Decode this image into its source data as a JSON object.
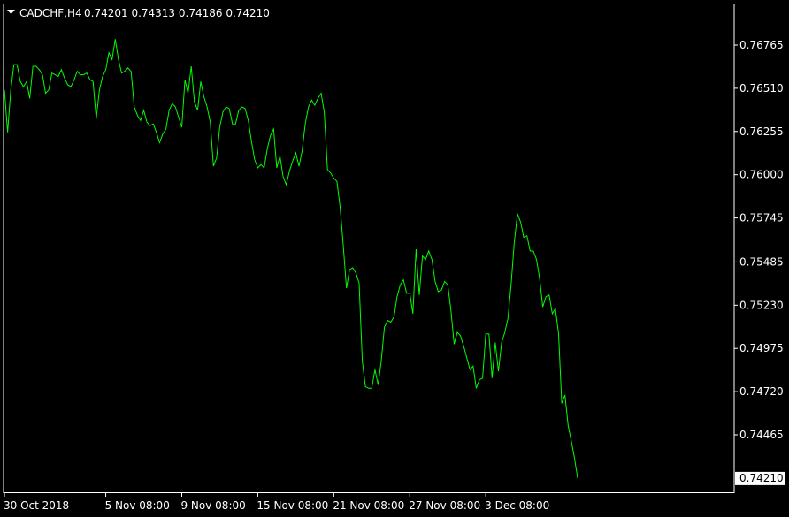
{
  "header": {
    "symbol": "CADCHF,H4",
    "ohlc": "0.74201 0.74313 0.74186 0.74210"
  },
  "colors": {
    "background": "#000000",
    "frame": "#ffffff",
    "line": "#00ff00",
    "text": "#ffffff",
    "current_price_box": "#ffffff",
    "current_price_text": "#000000"
  },
  "chart_data": {
    "type": "line",
    "title": "CADCHF,H4",
    "grid": false,
    "y_tick_labels": [
      "0.76765",
      "0.76510",
      "0.76255",
      "0.76000",
      "0.75745",
      "0.75485",
      "0.75230",
      "0.74975",
      "0.74720",
      "0.74465"
    ],
    "y_ticks": [
      0.76765,
      0.7651,
      0.76255,
      0.76,
      0.75745,
      0.75485,
      0.7523,
      0.74975,
      0.7472,
      0.74465
    ],
    "x_tick_labels": [
      "30 Oct 2018",
      "5 Nov 08:00",
      "9 Nov 08:00",
      "15 Nov 08:00",
      "21 Nov 08:00",
      "27 Nov 08:00",
      "3 Dec 08:00"
    ],
    "x_tick_bar_index": [
      0,
      32,
      56,
      80,
      104,
      128,
      152
    ],
    "current_price": "0.74210",
    "ylim": [
      0.741,
      0.77
    ],
    "series": [
      {
        "values": [
          0.765,
          0.7625,
          0.765,
          0.7665,
          0.7665,
          0.7655,
          0.7652,
          0.7655,
          0.7645,
          0.7664,
          0.7664,
          0.7662,
          0.7659,
          0.7648,
          0.765,
          0.766,
          0.7659,
          0.7658,
          0.7662,
          0.7657,
          0.7653,
          0.7652,
          0.7656,
          0.7661,
          0.7659,
          0.7659,
          0.766,
          0.7656,
          0.7655,
          0.7633,
          0.765,
          0.7658,
          0.7662,
          0.7672,
          0.7668,
          0.768,
          0.7668,
          0.766,
          0.7661,
          0.7663,
          0.7661,
          0.764,
          0.7635,
          0.7632,
          0.7638,
          0.7631,
          0.7629,
          0.763,
          0.7625,
          0.7619,
          0.7624,
          0.7627,
          0.7638,
          0.7642,
          0.764,
          0.7634,
          0.7628,
          0.7656,
          0.7648,
          0.7664,
          0.7643,
          0.7638,
          0.7655,
          0.7646,
          0.764,
          0.7631,
          0.7605,
          0.761,
          0.7628,
          0.7637,
          0.764,
          0.7639,
          0.763,
          0.763,
          0.7638,
          0.764,
          0.7639,
          0.7632,
          0.762,
          0.7609,
          0.7604,
          0.7606,
          0.7604,
          0.7615,
          0.7623,
          0.7627,
          0.7604,
          0.7611,
          0.7599,
          0.7594,
          0.7602,
          0.7608,
          0.7613,
          0.7605,
          0.7614,
          0.763,
          0.764,
          0.7644,
          0.7641,
          0.7645,
          0.7648,
          0.7637,
          0.7603,
          0.7601,
          0.7598,
          0.7596,
          0.7581,
          0.7558,
          0.7533,
          0.7544,
          0.7545,
          0.7542,
          0.7536,
          0.749,
          0.7475,
          0.7474,
          0.7474,
          0.7485,
          0.7476,
          0.749,
          0.751,
          0.7514,
          0.7513,
          0.7516,
          0.7528,
          0.7535,
          0.7538,
          0.753,
          0.753,
          0.7518,
          0.7556,
          0.7529,
          0.7552,
          0.755,
          0.7555,
          0.755,
          0.7537,
          0.7531,
          0.7532,
          0.7537,
          0.7535,
          0.752,
          0.75,
          0.7507,
          0.7505,
          0.7499,
          0.7492,
          0.7485,
          0.7487,
          0.7474,
          0.7479,
          0.748,
          0.7506,
          0.7506,
          0.748,
          0.7501,
          0.7484,
          0.7501,
          0.7507,
          0.7515,
          0.7535,
          0.756,
          0.7577,
          0.7572,
          0.7563,
          0.7564,
          0.7555,
          0.7555,
          0.755,
          0.7539,
          0.7522,
          0.7528,
          0.7529,
          0.7518,
          0.7521,
          0.7506,
          0.7465,
          0.747,
          0.7452,
          0.7443,
          0.7433,
          0.7421
        ]
      }
    ]
  }
}
